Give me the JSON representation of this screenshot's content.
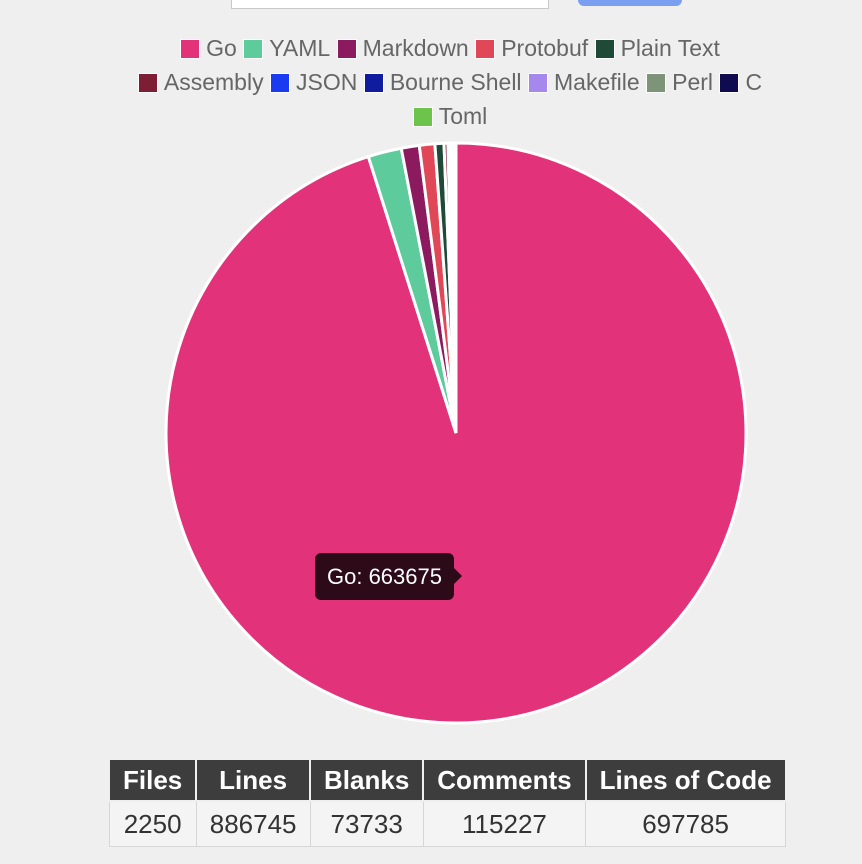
{
  "chart_data": {
    "type": "pie",
    "legend_position": "top",
    "series": [
      {
        "name": "Go",
        "value": 663675,
        "color": "#e1327a"
      },
      {
        "name": "YAML",
        "value": 13000,
        "color": "#5ecb9d"
      },
      {
        "name": "Markdown",
        "value": 7000,
        "color": "#8b1a5e"
      },
      {
        "name": "Protobuf",
        "value": 6000,
        "color": "#e04858"
      },
      {
        "name": "Plain Text",
        "value": 3500,
        "color": "#1f4a38"
      },
      {
        "name": "Assembly",
        "value": 1500,
        "color": "#7e1e34"
      },
      {
        "name": "JSON",
        "value": 1000,
        "color": "#1a3bf0"
      },
      {
        "name": "Bourne Shell",
        "value": 700,
        "color": "#101c9e"
      },
      {
        "name": "Makefile",
        "value": 500,
        "color": "#a688ec"
      },
      {
        "name": "Perl",
        "value": 400,
        "color": "#7d9478"
      },
      {
        "name": "C",
        "value": 300,
        "color": "#100a50"
      },
      {
        "name": "Toml",
        "value": 210,
        "color": "#6cc44a"
      }
    ],
    "tooltip": {
      "label": "Go: 663675"
    }
  },
  "stats_table": {
    "headers": [
      "Files",
      "Lines",
      "Blanks",
      "Comments",
      "Lines of Code"
    ],
    "values": [
      "2250",
      "886745",
      "73733",
      "115227",
      "697785"
    ]
  }
}
